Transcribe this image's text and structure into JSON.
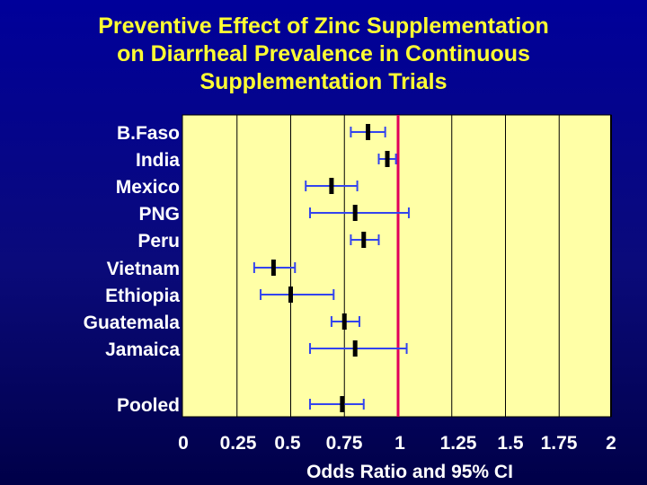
{
  "title_lines": [
    "Preventive Effect of Zinc Supplementation",
    "on Diarrheal Prevalence in Continuous",
    "Supplementation Trials"
  ],
  "chart_data": {
    "type": "forest",
    "title": "Preventive Effect of Zinc Supplementation on Diarrheal Prevalence in Continuous Supplementation Trials",
    "xlabel": "Odds Ratio and 95% CI",
    "xlim": [
      0,
      2
    ],
    "x_ticks": [
      "0",
      "0.25",
      "0.5",
      "0.75",
      "1",
      "1.25",
      "1.5",
      "1.75",
      "2"
    ],
    "reference_line": 1,
    "grid": true,
    "studies": [
      {
        "label": "B.Faso",
        "or": 0.86,
        "lower": 0.78,
        "upper": 0.94
      },
      {
        "label": "India",
        "or": 0.95,
        "lower": 0.91,
        "upper": 0.99
      },
      {
        "label": "Mexico",
        "or": 0.69,
        "lower": 0.57,
        "upper": 0.81
      },
      {
        "label": "PNG",
        "or": 0.8,
        "lower": 0.59,
        "upper": 1.05
      },
      {
        "label": "Peru",
        "or": 0.84,
        "lower": 0.78,
        "upper": 0.91
      },
      {
        "label": "Vietnam",
        "or": 0.42,
        "lower": 0.33,
        "upper": 0.52
      },
      {
        "label": "Ethiopia",
        "or": 0.5,
        "lower": 0.36,
        "upper": 0.7
      },
      {
        "label": "Guatemala",
        "or": 0.75,
        "lower": 0.69,
        "upper": 0.82
      },
      {
        "label": "Jamaica",
        "or": 0.8,
        "lower": 0.59,
        "upper": 1.04
      },
      {
        "label": "Pooled",
        "or": 0.74,
        "lower": 0.59,
        "upper": 0.84
      }
    ]
  },
  "colors": {
    "plot_background": "#ffffa6",
    "reference_line": "#e0005a",
    "ci_line": "#3344ee",
    "point_marker": "#000000",
    "text": "#ffffff",
    "title": "#ffff33"
  }
}
